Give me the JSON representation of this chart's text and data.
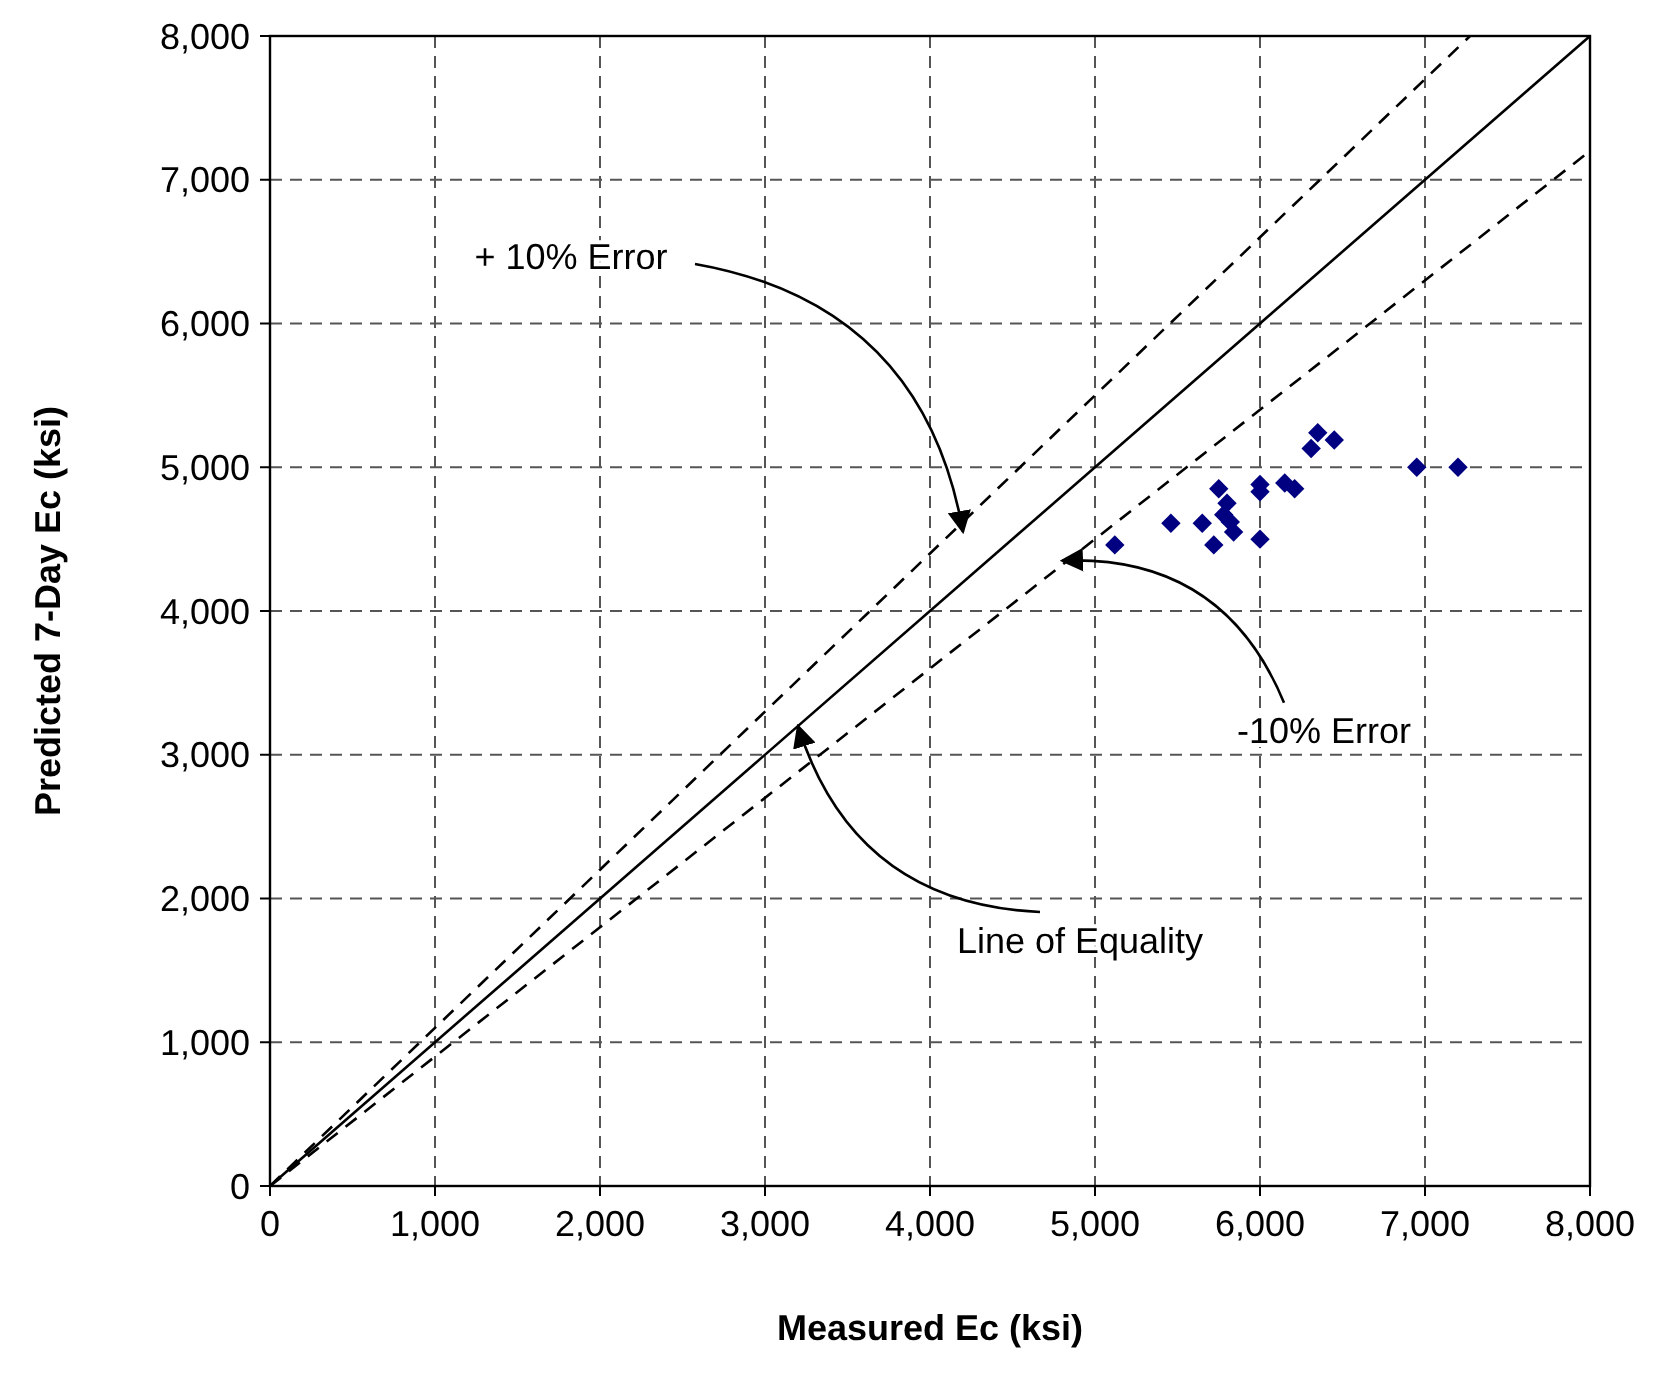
{
  "chart_data": {
    "type": "scatter",
    "xlabel": "Measured Ec (ksi)",
    "ylabel": "Predicted 7-Day Ec (ksi)",
    "xlim": [
      0,
      8000
    ],
    "ylim": [
      0,
      8000
    ],
    "xticks": [
      {
        "value": 0,
        "label": "0"
      },
      {
        "value": 1000,
        "label": "1,000"
      },
      {
        "value": 2000,
        "label": "2,000"
      },
      {
        "value": 3000,
        "label": "3,000"
      },
      {
        "value": 4000,
        "label": "4,000"
      },
      {
        "value": 5000,
        "label": "5,000"
      },
      {
        "value": 6000,
        "label": "6,000"
      },
      {
        "value": 7000,
        "label": "7,000"
      },
      {
        "value": 8000,
        "label": "8,000"
      }
    ],
    "yticks": [
      {
        "value": 0,
        "label": "0"
      },
      {
        "value": 1000,
        "label": "1,000"
      },
      {
        "value": 2000,
        "label": "2,000"
      },
      {
        "value": 3000,
        "label": "3,000"
      },
      {
        "value": 4000,
        "label": "4,000"
      },
      {
        "value": 5000,
        "label": "5,000"
      },
      {
        "value": 6000,
        "label": "6,000"
      },
      {
        "value": 7000,
        "label": "7,000"
      },
      {
        "value": 8000,
        "label": "8,000"
      }
    ],
    "grid": true,
    "marker": "diamond",
    "series": [
      {
        "color": "#000080",
        "x": [
          5120,
          5460,
          5650,
          5750,
          5720,
          5800,
          5780,
          5820,
          5840,
          6000,
          6000,
          6000,
          6150,
          6210,
          6350,
          6310,
          6450,
          6950,
          7200
        ],
        "values": [
          4460,
          4610,
          4610,
          4850,
          4460,
          4750,
          4670,
          4620,
          4550,
          4500,
          4880,
          4830,
          4890,
          4850,
          5240,
          5130,
          5190,
          5000,
          5000
        ]
      },
      {
        "type": "line",
        "color": "#000000",
        "marker": "none",
        "line_style": "solid",
        "x": [
          0,
          8000
        ],
        "values": [
          0,
          8000
        ]
      },
      {
        "type": "line",
        "color": "#000000",
        "marker": "none",
        "line_style": "dashed",
        "x": [
          0,
          2000,
          4000,
          6000,
          7273
        ],
        "values": [
          0,
          2200,
          4400,
          6600,
          8000
        ]
      },
      {
        "type": "line",
        "color": "#000000",
        "marker": "none",
        "line_style": "dashed",
        "x": [
          0,
          2000,
          4000,
          6000,
          8000
        ],
        "values": [
          0,
          1800,
          3600,
          5400,
          7200
        ]
      }
    ],
    "annotations": [
      {
        "text": "+ 10% Error",
        "x": 4200,
        "y": 4550
      },
      {
        "text": "-10% Error",
        "x": 4800,
        "y": 4350
      },
      {
        "text": "Line of Equality",
        "x": 3200,
        "y": 3200
      }
    ]
  }
}
